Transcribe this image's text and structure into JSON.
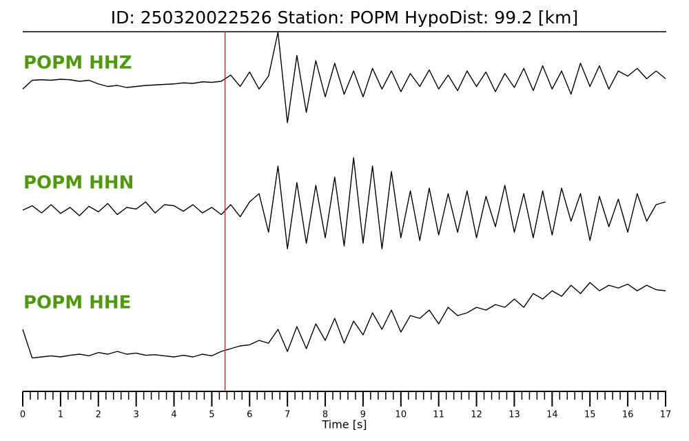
{
  "chart_data": {
    "type": "line",
    "title": "ID: 250320022526   Station: POPM   HypoDist:    99.2 [km]",
    "x_label": "Time [s]",
    "xlim": [
      0,
      17
    ],
    "xticks": [
      0,
      1,
      2,
      3,
      4,
      5,
      6,
      7,
      8,
      9,
      10,
      11,
      12,
      13,
      14,
      15,
      16,
      17
    ],
    "xminorticks": [
      0.2,
      0.4,
      0.6,
      0.8,
      1.2,
      1.4,
      1.6,
      1.8,
      2.2,
      2.4,
      2.6,
      2.8,
      3.2,
      3.4,
      3.6,
      3.8,
      4.2,
      4.4,
      4.6,
      4.8,
      5.2,
      5.4,
      5.6,
      5.8,
      6.2,
      6.4,
      6.6,
      6.8,
      7.2,
      7.4,
      7.6,
      7.8,
      8.2,
      8.4,
      8.6,
      8.8,
      9.2,
      9.4,
      9.6,
      9.8,
      10.2,
      10.4,
      10.6,
      10.8,
      11.2,
      11.4,
      11.6,
      11.8,
      12.2,
      12.4,
      12.6,
      12.8,
      13.2,
      13.4,
      13.6,
      13.8,
      14.2,
      14.4,
      14.6,
      14.8,
      15.2,
      15.4,
      15.6,
      15.8,
      16.2,
      16.4,
      16.6,
      16.8
    ],
    "ylim": [
      -1,
      1
    ],
    "pick": 5.35,
    "pick_color": "#e8262a",
    "label_color": "#4e9a0c",
    "x": [
      0,
      0.25,
      0.5,
      0.75,
      1,
      1.25,
      1.5,
      1.75,
      2,
      2.25,
      2.5,
      2.75,
      3,
      3.25,
      3.5,
      3.75,
      4,
      4.25,
      4.5,
      4.75,
      5,
      5.25,
      5.5,
      5.75,
      6,
      6.25,
      6.5,
      6.75,
      7,
      7.25,
      7.5,
      7.75,
      8,
      8.25,
      8.5,
      8.75,
      9,
      9.25,
      9.5,
      9.75,
      10,
      10.25,
      10.5,
      10.75,
      11,
      11.25,
      11.5,
      11.75,
      12,
      12.25,
      12.5,
      12.75,
      13,
      13.25,
      13.5,
      13.75,
      14,
      14.25,
      14.5,
      14.75,
      15,
      15.25,
      15.5,
      15.75,
      16,
      16.25,
      16.5,
      16.75,
      17
    ],
    "series": [
      {
        "name": "POPM HHZ",
        "color": "#000000",
        "values": [
          -0.15,
          0.02,
          0.03,
          0.02,
          0.04,
          0.03,
          0.0,
          0.02,
          -0.05,
          -0.1,
          -0.08,
          -0.12,
          -0.1,
          -0.08,
          -0.07,
          -0.06,
          -0.05,
          -0.03,
          -0.04,
          -0.01,
          -0.02,
          0.0,
          0.12,
          -0.1,
          0.18,
          -0.15,
          0.1,
          0.95,
          -0.8,
          0.5,
          -0.6,
          0.4,
          -0.3,
          0.35,
          -0.25,
          0.2,
          -0.3,
          0.25,
          -0.15,
          0.2,
          -0.2,
          0.15,
          -0.1,
          0.22,
          -0.15,
          0.12,
          -0.18,
          0.2,
          -0.1,
          0.18,
          -0.2,
          0.15,
          -0.12,
          0.25,
          -0.18,
          0.3,
          -0.15,
          0.2,
          -0.25,
          0.35,
          -0.1,
          0.3,
          -0.15,
          0.2,
          0.1,
          0.25,
          0.05,
          0.2,
          0.05
        ]
      },
      {
        "name": "POPM HHN",
        "color": "#000000",
        "values": [
          0,
          0.08,
          -0.05,
          0.1,
          -0.06,
          0.05,
          -0.1,
          0.07,
          -0.03,
          0.12,
          -0.08,
          0.05,
          0.02,
          0.15,
          -0.05,
          0.1,
          0.08,
          -0.02,
          0.1,
          -0.05,
          0.05,
          -0.08,
          0.1,
          -0.12,
          0.15,
          0.3,
          -0.4,
          0.8,
          -0.7,
          0.5,
          -0.6,
          0.45,
          -0.5,
          0.6,
          -0.65,
          0.95,
          -0.6,
          0.8,
          -0.7,
          0.7,
          -0.5,
          0.35,
          -0.55,
          0.4,
          -0.45,
          0.3,
          -0.4,
          0.35,
          -0.5,
          0.25,
          -0.3,
          0.45,
          -0.4,
          0.3,
          -0.5,
          0.35,
          -0.45,
          0.4,
          -0.2,
          0.3,
          -0.55,
          0.25,
          -0.3,
          0.2,
          -0.4,
          0.3,
          -0.2,
          0.1,
          0.15
        ]
      },
      {
        "name": "POPM HHE",
        "color": "#000000",
        "values": [
          -0.1,
          -0.62,
          -0.6,
          -0.58,
          -0.6,
          -0.57,
          -0.55,
          -0.58,
          -0.52,
          -0.55,
          -0.5,
          -0.55,
          -0.53,
          -0.57,
          -0.56,
          -0.58,
          -0.6,
          -0.57,
          -0.6,
          -0.55,
          -0.58,
          -0.5,
          -0.45,
          -0.4,
          -0.38,
          -0.3,
          -0.35,
          -0.1,
          -0.5,
          -0.05,
          -0.45,
          0.0,
          -0.3,
          0.1,
          -0.35,
          0.05,
          -0.2,
          0.2,
          -0.1,
          0.25,
          -0.15,
          0.15,
          0.1,
          0.25,
          0.0,
          0.3,
          0.15,
          0.2,
          0.3,
          0.25,
          0.35,
          0.3,
          0.45,
          0.3,
          0.55,
          0.45,
          0.6,
          0.5,
          0.7,
          0.55,
          0.75,
          0.6,
          0.7,
          0.65,
          0.72,
          0.6,
          0.7,
          0.62,
          0.6
        ]
      }
    ]
  }
}
